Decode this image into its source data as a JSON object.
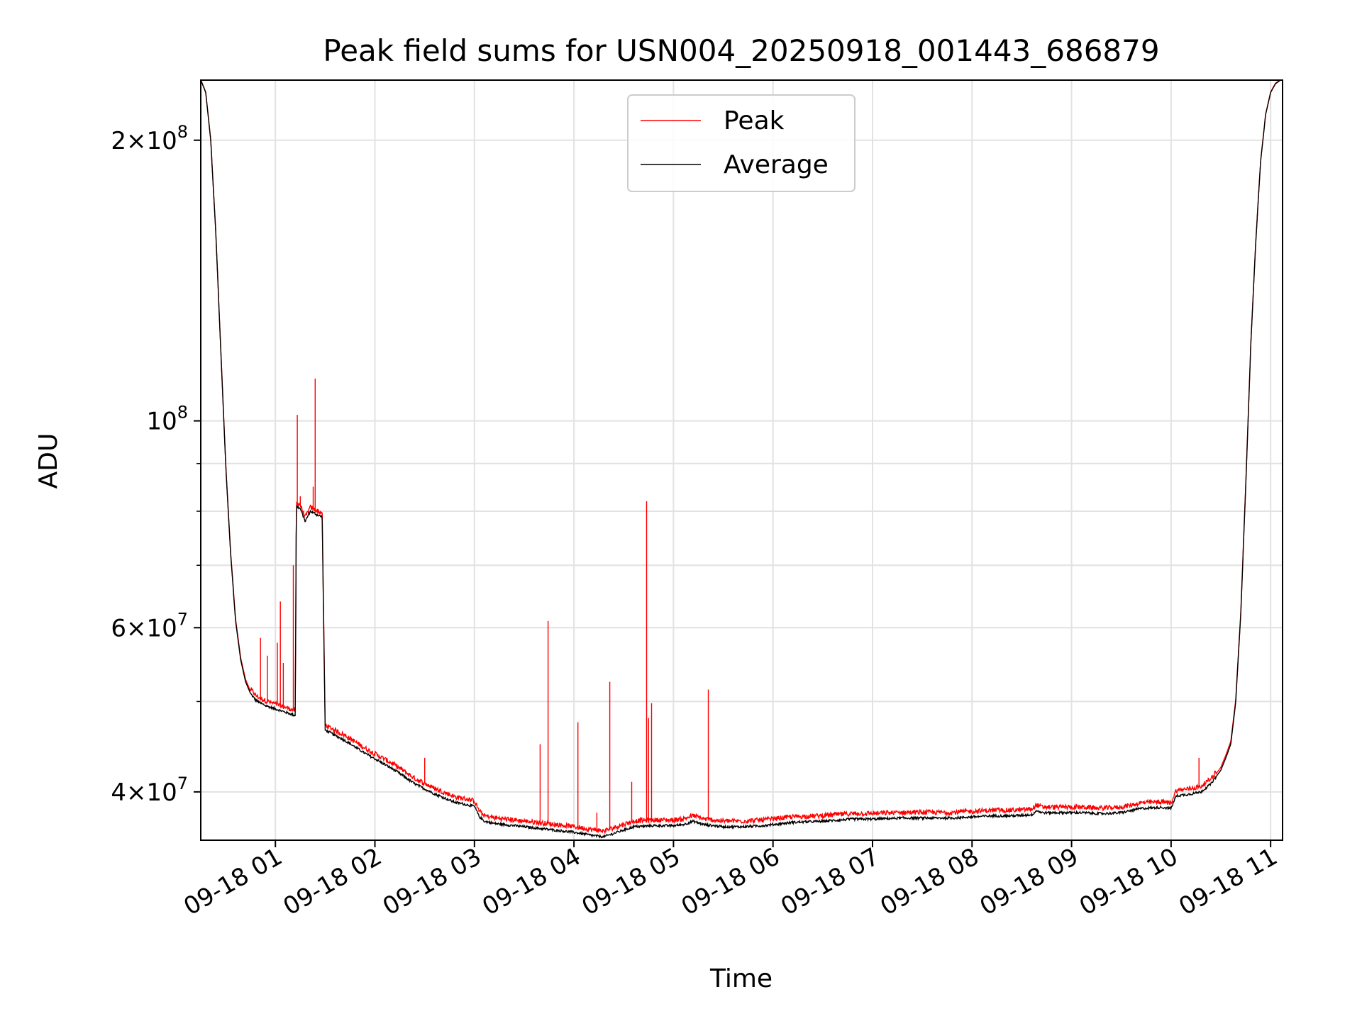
{
  "chart_data": {
    "type": "line",
    "title": "Peak field sums for USN004_20250918_001443_686879",
    "xlabel": "Time",
    "ylabel": "ADU",
    "y_scale": "log",
    "ylim": [
      35500000,
      232000000
    ],
    "xlim": [
      0.25,
      11.12
    ],
    "grid": true,
    "legend_position": "top-center",
    "x_ticks": [
      {
        "value": 1,
        "label": "09-18 01"
      },
      {
        "value": 2,
        "label": "09-18 02"
      },
      {
        "value": 3,
        "label": "09-18 03"
      },
      {
        "value": 4,
        "label": "09-18 04"
      },
      {
        "value": 5,
        "label": "09-18 05"
      },
      {
        "value": 6,
        "label": "09-18 06"
      },
      {
        "value": 7,
        "label": "09-18 07"
      },
      {
        "value": 8,
        "label": "09-18 08"
      },
      {
        "value": 9,
        "label": "09-18 09"
      },
      {
        "value": 10,
        "label": "09-18 10"
      },
      {
        "value": 11,
        "label": "09-18 11"
      }
    ],
    "y_major_ticks": [
      {
        "value": 40000000,
        "mantissa": "4",
        "base": "10",
        "exp": "7"
      },
      {
        "value": 60000000,
        "mantissa": "6",
        "base": "10",
        "exp": "7"
      },
      {
        "value": 100000000,
        "mantissa": "",
        "base": "10",
        "exp": "8"
      },
      {
        "value": 200000000,
        "mantissa": "2",
        "base": "10",
        "exp": "8"
      }
    ],
    "y_minor_ticks": [
      50000000,
      70000000,
      80000000,
      90000000
    ],
    "series": [
      {
        "name": "Average",
        "color": "#000000",
        "x": [
          0.25,
          0.3,
          0.35,
          0.4,
          0.45,
          0.5,
          0.55,
          0.6,
          0.65,
          0.7,
          0.75,
          0.8,
          0.85,
          0.9,
          0.95,
          1.0,
          1.05,
          1.1,
          1.15,
          1.2,
          1.21,
          1.25,
          1.3,
          1.35,
          1.4,
          1.45,
          1.47,
          1.5,
          1.6,
          1.7,
          1.8,
          1.9,
          2.0,
          2.1,
          2.2,
          2.3,
          2.4,
          2.5,
          2.6,
          2.7,
          2.8,
          2.9,
          3.0,
          3.05,
          3.1,
          3.2,
          3.4,
          3.6,
          3.8,
          4.0,
          4.2,
          4.3,
          4.4,
          4.5,
          4.6,
          4.8,
          5.0,
          5.1,
          5.2,
          5.3,
          5.5,
          5.7,
          5.9,
          6.0,
          6.2,
          6.5,
          6.8,
          7.0,
          7.3,
          7.6,
          7.8,
          8.0,
          8.2,
          8.4,
          8.6,
          8.65,
          8.7,
          8.9,
          9.1,
          9.3,
          9.5,
          9.7,
          9.9,
          10.0,
          10.05,
          10.2,
          10.3,
          10.4,
          10.5,
          10.55,
          10.6,
          10.65,
          10.7,
          10.75,
          10.8,
          10.85,
          10.9,
          10.95,
          11.0,
          11.05,
          11.1,
          11.12
        ],
        "values": [
          232000000,
          225000000,
          200000000,
          160000000,
          120000000,
          90000000,
          72000000,
          61000000,
          55500000,
          52500000,
          51000000,
          50200000,
          49800000,
          49500000,
          49300000,
          49100000,
          48900000,
          48700000,
          48500000,
          48300000,
          81000000,
          80500000,
          78000000,
          80000000,
          79500000,
          79000000,
          79000000,
          46600000,
          46000000,
          45400000,
          44700000,
          44000000,
          43400000,
          42800000,
          42200000,
          41500000,
          40800000,
          40300000,
          39800000,
          39400000,
          39000000,
          38800000,
          38600000,
          37600000,
          37200000,
          37000000,
          36800000,
          36600000,
          36400000,
          36200000,
          35900000,
          35800000,
          36100000,
          36400000,
          36700000,
          36800000,
          36800000,
          36900000,
          37200000,
          36900000,
          36700000,
          36700000,
          36800000,
          36900000,
          37100000,
          37200000,
          37400000,
          37400000,
          37500000,
          37500000,
          37500000,
          37600000,
          37700000,
          37700000,
          37800000,
          38200000,
          38000000,
          38000000,
          38000000,
          37900000,
          38000000,
          38400000,
          38500000,
          38400000,
          39600000,
          39800000,
          40000000,
          40800000,
          42200000,
          43500000,
          45000000,
          50000000,
          62000000,
          85000000,
          120000000,
          155000000,
          190000000,
          213000000,
          225000000,
          230000000,
          232000000,
          232000000
        ]
      },
      {
        "name": "Peak",
        "color": "#ff0000",
        "baseline_offset": 300000,
        "spikes": [
          {
            "x": 0.85,
            "value": 58500000
          },
          {
            "x": 0.92,
            "value": 56000000
          },
          {
            "x": 1.02,
            "value": 57800000
          },
          {
            "x": 1.05,
            "value": 64000000
          },
          {
            "x": 1.08,
            "value": 55000000
          },
          {
            "x": 1.18,
            "value": 70000000
          },
          {
            "x": 1.22,
            "value": 101500000
          },
          {
            "x": 1.25,
            "value": 83000000
          },
          {
            "x": 1.38,
            "value": 85000000
          },
          {
            "x": 1.4,
            "value": 111000000
          },
          {
            "x": 2.5,
            "value": 43500000
          },
          {
            "x": 3.66,
            "value": 45000000
          },
          {
            "x": 3.74,
            "value": 61000000
          },
          {
            "x": 4.04,
            "value": 47500000
          },
          {
            "x": 4.23,
            "value": 38000000
          },
          {
            "x": 4.36,
            "value": 52500000
          },
          {
            "x": 4.58,
            "value": 41000000
          },
          {
            "x": 4.73,
            "value": 82000000
          },
          {
            "x": 4.75,
            "value": 48000000
          },
          {
            "x": 4.78,
            "value": 49800000
          },
          {
            "x": 5.35,
            "value": 51500000
          },
          {
            "x": 10.28,
            "value": 43500000
          }
        ]
      }
    ]
  }
}
